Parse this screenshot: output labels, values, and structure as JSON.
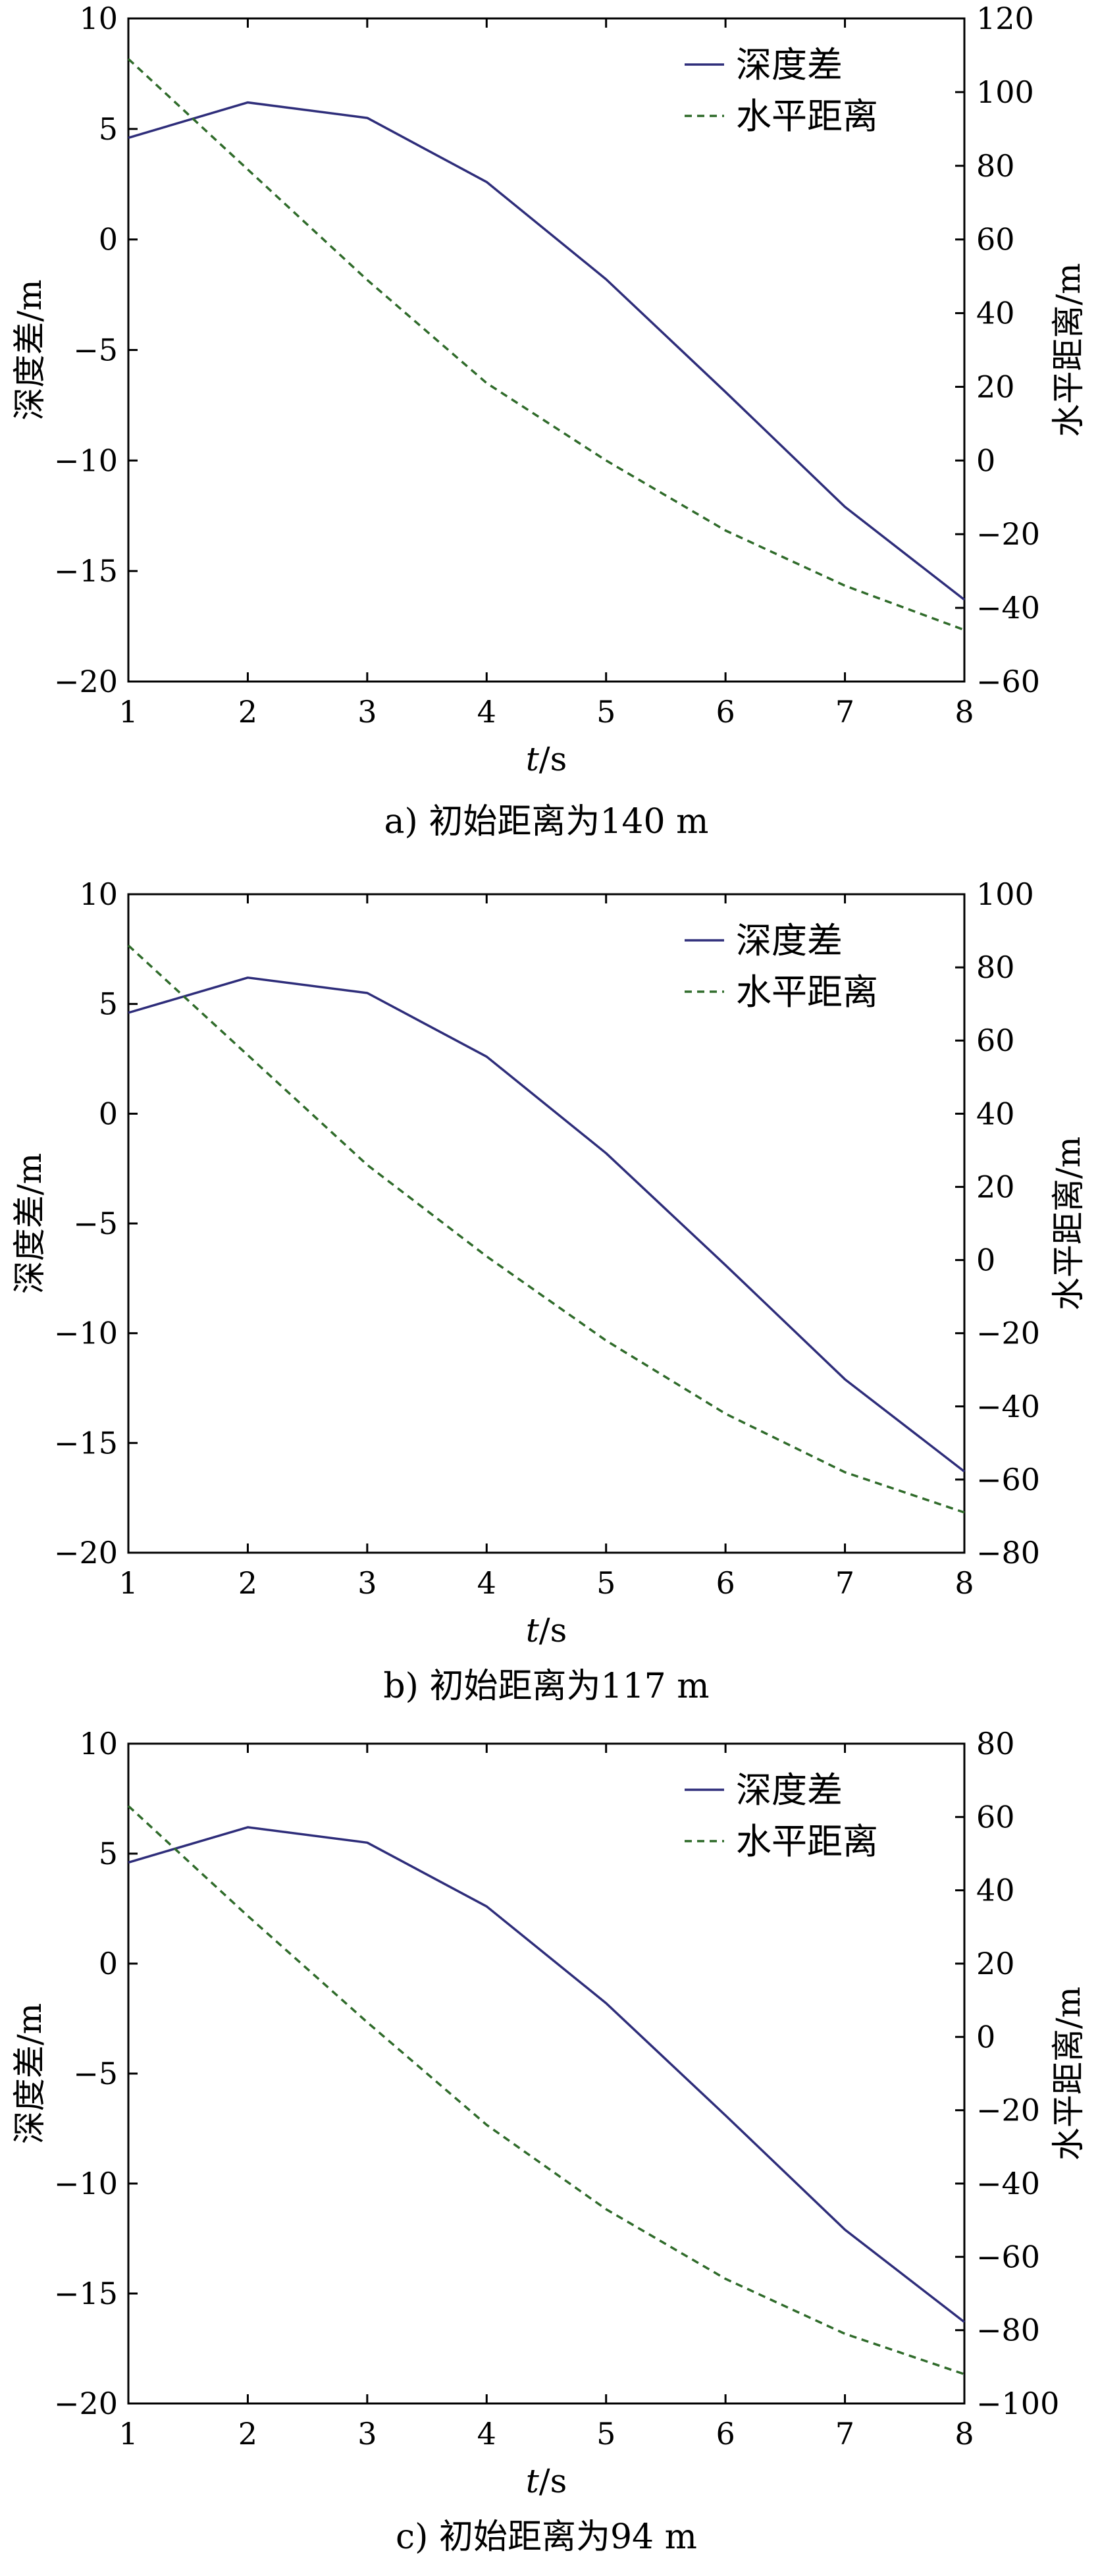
{
  "chart_data": [
    {
      "type": "line",
      "caption": "a) 初始距离为140 m",
      "xlabel": "t/s",
      "ylabel_left": "深度差/m",
      "ylabel_right": "水平距离/m",
      "xlim": [
        1,
        8
      ],
      "ylim_left": [
        -20,
        10
      ],
      "ylim_right": [
        -60,
        120
      ],
      "xticks": [
        1,
        2,
        3,
        4,
        5,
        6,
        7,
        8
      ],
      "yticks_left": [
        10,
        5,
        0,
        -5,
        -10,
        -15,
        -20
      ],
      "yticks_right": [
        120,
        100,
        80,
        60,
        40,
        20,
        0,
        -20,
        -40,
        -60
      ],
      "legend_position": "top-right",
      "colors": {
        "depth": "#2e2d7a",
        "horizontal": "#2f6b2a"
      },
      "series": [
        {
          "name": "深度差",
          "axis": "left",
          "style": "solid",
          "x": [
            1,
            2,
            3,
            4,
            5,
            6,
            7,
            8
          ],
          "y": [
            4.6,
            6.2,
            5.5,
            2.6,
            -1.8,
            -6.9,
            -12.1,
            -16.3
          ]
        },
        {
          "name": "水平距离",
          "axis": "right",
          "style": "dashed",
          "x": [
            1,
            2,
            3,
            4,
            5,
            6,
            7,
            8
          ],
          "y": [
            109,
            79,
            49,
            21,
            0,
            -19,
            -34,
            -46
          ]
        }
      ]
    },
    {
      "type": "line",
      "caption": "b) 初始距离为117 m",
      "xlabel": "t/s",
      "ylabel_left": "深度差/m",
      "ylabel_right": "水平距离/m",
      "xlim": [
        1,
        8
      ],
      "ylim_left": [
        -20,
        10
      ],
      "ylim_right": [
        -80,
        100
      ],
      "xticks": [
        1,
        2,
        3,
        4,
        5,
        6,
        7,
        8
      ],
      "yticks_left": [
        10,
        5,
        0,
        -5,
        -10,
        -15,
        -20
      ],
      "yticks_right": [
        100,
        80,
        60,
        40,
        20,
        0,
        -20,
        -40,
        -60,
        -80
      ],
      "legend_position": "top-right",
      "colors": {
        "depth": "#2e2d7a",
        "horizontal": "#2f6b2a"
      },
      "series": [
        {
          "name": "深度差",
          "axis": "left",
          "style": "solid",
          "x": [
            1,
            2,
            3,
            4,
            5,
            6,
            7,
            8
          ],
          "y": [
            4.6,
            6.2,
            5.5,
            2.6,
            -1.8,
            -6.9,
            -12.1,
            -16.3
          ]
        },
        {
          "name": "水平距离",
          "axis": "right",
          "style": "dashed",
          "x": [
            1,
            2,
            3,
            4,
            5,
            6,
            7,
            8
          ],
          "y": [
            86,
            56,
            26,
            1,
            -22,
            -42,
            -58,
            -69
          ]
        }
      ]
    },
    {
      "type": "line",
      "caption": "c) 初始距离为94 m",
      "xlabel": "t/s",
      "ylabel_left": "深度差/m",
      "ylabel_right": "水平距离/m",
      "xlim": [
        1,
        8
      ],
      "ylim_left": [
        -20,
        10
      ],
      "ylim_right": [
        -100,
        80
      ],
      "xticks": [
        1,
        2,
        3,
        4,
        5,
        6,
        7,
        8
      ],
      "yticks_left": [
        10,
        5,
        0,
        -5,
        -10,
        -15,
        -20
      ],
      "yticks_right": [
        80,
        60,
        40,
        20,
        0,
        -20,
        -40,
        -60,
        -80,
        -100
      ],
      "legend_position": "top-right",
      "colors": {
        "depth": "#2e2d7a",
        "horizontal": "#2f6b2a"
      },
      "series": [
        {
          "name": "深度差",
          "axis": "left",
          "style": "solid",
          "x": [
            1,
            2,
            3,
            4,
            5,
            6,
            7,
            8
          ],
          "y": [
            4.6,
            6.2,
            5.5,
            2.6,
            -1.8,
            -6.9,
            -12.1,
            -16.3
          ]
        },
        {
          "name": "水平距离",
          "axis": "right",
          "style": "dashed",
          "x": [
            1,
            2,
            3,
            4,
            5,
            6,
            7,
            8
          ],
          "y": [
            63,
            33,
            4,
            -24,
            -47,
            -66,
            -81,
            -92
          ]
        }
      ]
    }
  ]
}
